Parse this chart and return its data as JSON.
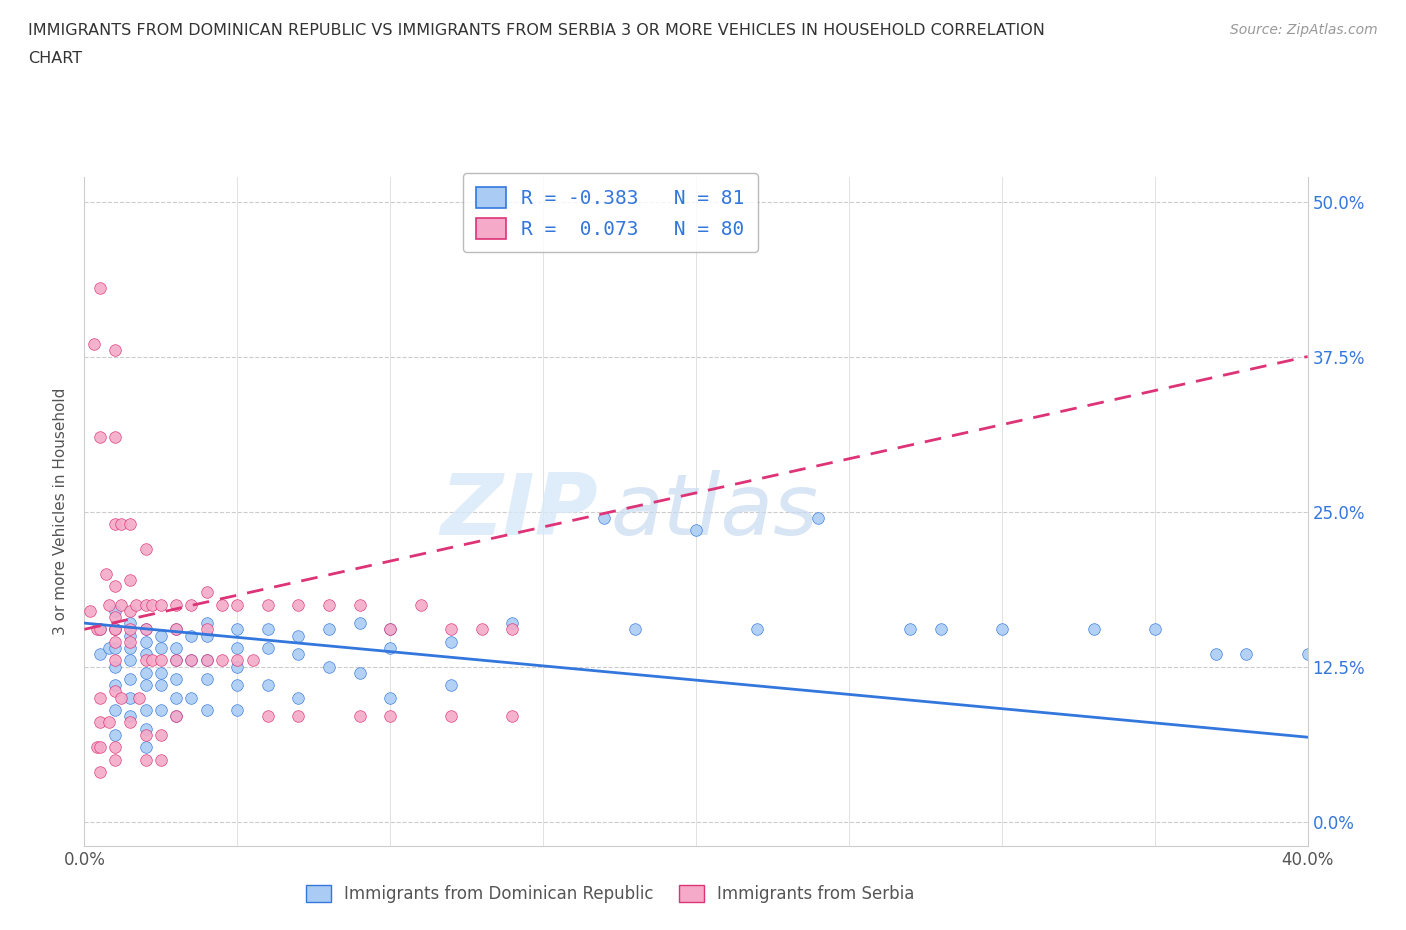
{
  "title_line1": "IMMIGRANTS FROM DOMINICAN REPUBLIC VS IMMIGRANTS FROM SERBIA 3 OR MORE VEHICLES IN HOUSEHOLD CORRELATION",
  "title_line2": "CHART",
  "source": "Source: ZipAtlas.com",
  "ylabel_ticks": [
    "0.0%",
    "12.5%",
    "25.0%",
    "37.5%",
    "50.0%"
  ],
  "ylabel_label": "3 or more Vehicles in Household",
  "legend_label_blue": "Immigrants from Dominican Republic",
  "legend_label_pink": "Immigrants from Serbia",
  "R_blue": -0.383,
  "N_blue": 81,
  "R_pink": 0.073,
  "N_pink": 80,
  "color_blue": "#aaccf4",
  "color_pink": "#f4aac8",
  "color_line_blue": "#3377dd",
  "color_line_pink": "#dd3377",
  "watermark_zip": "ZIP",
  "watermark_atlas": "atlas",
  "xmin": 0.0,
  "xmax": 0.4,
  "ymin": -0.02,
  "ymax": 0.52,
  "blue_line_x0": 0.0,
  "blue_line_y0": 0.16,
  "blue_line_x1": 0.4,
  "blue_line_y1": 0.068,
  "pink_line_x0": 0.0,
  "pink_line_y0": 0.155,
  "pink_line_x1": 0.4,
  "pink_line_y1": 0.375,
  "blue_scatter_x": [
    0.005,
    0.005,
    0.008,
    0.01,
    0.01,
    0.01,
    0.01,
    0.01,
    0.01,
    0.01,
    0.015,
    0.015,
    0.015,
    0.015,
    0.015,
    0.015,
    0.015,
    0.02,
    0.02,
    0.02,
    0.02,
    0.02,
    0.02,
    0.02,
    0.02,
    0.025,
    0.025,
    0.025,
    0.025,
    0.025,
    0.03,
    0.03,
    0.03,
    0.03,
    0.03,
    0.03,
    0.035,
    0.035,
    0.035,
    0.04,
    0.04,
    0.04,
    0.04,
    0.04,
    0.05,
    0.05,
    0.05,
    0.05,
    0.05,
    0.06,
    0.06,
    0.06,
    0.07,
    0.07,
    0.07,
    0.08,
    0.08,
    0.09,
    0.09,
    0.1,
    0.1,
    0.1,
    0.12,
    0.12,
    0.14,
    0.17,
    0.18,
    0.2,
    0.22,
    0.24,
    0.27,
    0.28,
    0.3,
    0.33,
    0.35,
    0.37,
    0.38,
    0.4
  ],
  "blue_scatter_y": [
    0.155,
    0.135,
    0.14,
    0.17,
    0.155,
    0.14,
    0.125,
    0.11,
    0.09,
    0.07,
    0.16,
    0.15,
    0.14,
    0.13,
    0.115,
    0.1,
    0.085,
    0.155,
    0.145,
    0.135,
    0.12,
    0.11,
    0.09,
    0.075,
    0.06,
    0.15,
    0.14,
    0.12,
    0.11,
    0.09,
    0.155,
    0.14,
    0.13,
    0.115,
    0.1,
    0.085,
    0.15,
    0.13,
    0.1,
    0.16,
    0.15,
    0.13,
    0.115,
    0.09,
    0.155,
    0.14,
    0.125,
    0.11,
    0.09,
    0.155,
    0.14,
    0.11,
    0.15,
    0.135,
    0.1,
    0.155,
    0.125,
    0.16,
    0.12,
    0.155,
    0.14,
    0.1,
    0.145,
    0.11,
    0.16,
    0.245,
    0.155,
    0.235,
    0.155,
    0.245,
    0.155,
    0.155,
    0.155,
    0.155,
    0.155,
    0.135,
    0.135,
    0.135
  ],
  "pink_scatter_x": [
    0.002,
    0.003,
    0.004,
    0.004,
    0.005,
    0.005,
    0.005,
    0.007,
    0.008,
    0.008,
    0.01,
    0.01,
    0.01,
    0.01,
    0.01,
    0.01,
    0.01,
    0.01,
    0.01,
    0.01,
    0.012,
    0.012,
    0.012,
    0.015,
    0.015,
    0.015,
    0.015,
    0.015,
    0.017,
    0.018,
    0.02,
    0.02,
    0.02,
    0.02,
    0.02,
    0.022,
    0.022,
    0.025,
    0.025,
    0.025,
    0.03,
    0.03,
    0.03,
    0.03,
    0.035,
    0.035,
    0.04,
    0.04,
    0.04,
    0.045,
    0.045,
    0.05,
    0.05,
    0.055,
    0.06,
    0.06,
    0.07,
    0.07,
    0.08,
    0.09,
    0.09,
    0.1,
    0.1,
    0.11,
    0.12,
    0.12,
    0.13,
    0.14,
    0.14,
    0.005,
    0.005,
    0.005,
    0.005,
    0.01,
    0.01,
    0.015,
    0.02,
    0.025
  ],
  "pink_scatter_y": [
    0.17,
    0.385,
    0.155,
    0.06,
    0.43,
    0.31,
    0.08,
    0.2,
    0.175,
    0.08,
    0.38,
    0.31,
    0.24,
    0.19,
    0.165,
    0.155,
    0.145,
    0.13,
    0.105,
    0.06,
    0.24,
    0.175,
    0.1,
    0.24,
    0.195,
    0.17,
    0.145,
    0.08,
    0.175,
    0.1,
    0.22,
    0.175,
    0.155,
    0.13,
    0.07,
    0.175,
    0.13,
    0.175,
    0.13,
    0.07,
    0.175,
    0.155,
    0.13,
    0.085,
    0.175,
    0.13,
    0.185,
    0.155,
    0.13,
    0.175,
    0.13,
    0.175,
    0.13,
    0.13,
    0.175,
    0.085,
    0.175,
    0.085,
    0.175,
    0.175,
    0.085,
    0.155,
    0.085,
    0.175,
    0.155,
    0.085,
    0.155,
    0.155,
    0.085,
    0.155,
    0.1,
    0.06,
    0.04,
    0.155,
    0.05,
    0.155,
    0.05,
    0.05
  ]
}
